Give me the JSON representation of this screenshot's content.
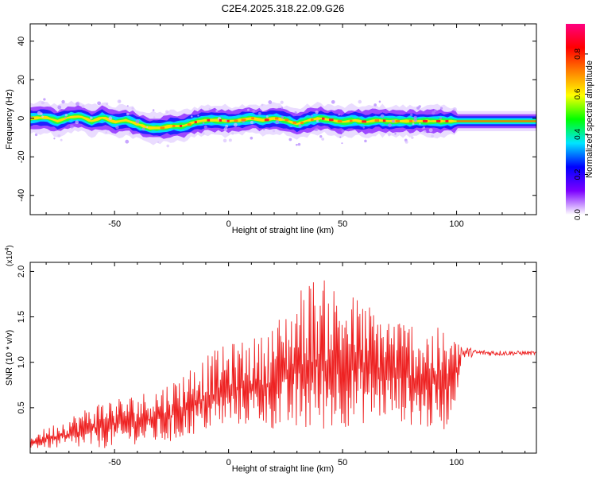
{
  "title": "C2E4.2025.318.22.09.G26",
  "chart_data": [
    {
      "type": "heatmap",
      "name": "spectrogram",
      "xlabel": "Height of straight line (km)",
      "ylabel": "Frequency (Hz)",
      "xlim": [
        -87,
        135
      ],
      "ylim": [
        -50,
        49
      ],
      "x_ticks": [
        -50,
        0,
        50,
        100
      ],
      "x_tick_labels": [
        "-50",
        "0",
        "50",
        "100"
      ],
      "y_ticks": [
        -40,
        -20,
        0,
        20,
        40
      ],
      "y_tick_labels": [
        "-40",
        "-20",
        "0",
        "20",
        "40"
      ],
      "ridge_frequency": [
        [
          -87,
          0
        ],
        [
          -80,
          0.5
        ],
        [
          -75,
          -1.5
        ],
        [
          -70,
          0.5
        ],
        [
          -65,
          1
        ],
        [
          -60,
          -1.5
        ],
        [
          -55,
          0.5
        ],
        [
          -50,
          -2
        ],
        [
          -45,
          -1
        ],
        [
          -40,
          -3
        ],
        [
          -35,
          -5
        ],
        [
          -30,
          -5
        ],
        [
          -25,
          -4
        ],
        [
          -20,
          -4
        ],
        [
          -15,
          -2
        ],
        [
          -10,
          -1
        ],
        [
          -5,
          -1
        ],
        [
          0,
          -1.5
        ],
        [
          5,
          -1
        ],
        [
          10,
          0
        ],
        [
          15,
          -1
        ],
        [
          20,
          0
        ],
        [
          25,
          -1
        ],
        [
          30,
          -3
        ],
        [
          35,
          -1
        ],
        [
          40,
          0
        ],
        [
          45,
          -1
        ],
        [
          50,
          -2
        ],
        [
          55,
          -1
        ],
        [
          60,
          -2
        ],
        [
          65,
          -1
        ],
        [
          70,
          -1.5
        ],
        [
          80,
          -1.5
        ],
        [
          90,
          -1.5
        ],
        [
          100,
          -1.5
        ],
        [
          115,
          -1.5
        ],
        [
          135,
          -1.5
        ]
      ],
      "colorbar": {
        "label": "Normalized spectral amplitude",
        "range": [
          0,
          0.95
        ],
        "ticks": [
          0.0,
          0.2,
          0.4,
          0.6,
          0.8
        ],
        "tick_labels": [
          "0.0",
          "0.2",
          "0.4",
          "0.6",
          "0.8"
        ],
        "colors": [
          "#ffffff",
          "#7c00ff",
          "#0000ff",
          "#00e5ff",
          "#00ff00",
          "#ffff00",
          "#ff8000",
          "#ff0000",
          "#ff0080"
        ]
      }
    },
    {
      "type": "line",
      "name": "snr",
      "xlabel": "Height of straight line (km)",
      "ylabel": "SNR (10 * v/v)",
      "y_multiplier": "(x10",
      "y_multiplier_exp": "4",
      "y_multiplier_close": ")",
      "xlim": [
        -87,
        135
      ],
      "ylim": [
        0,
        2.1
      ],
      "x_ticks": [
        -50,
        0,
        50,
        100
      ],
      "x_tick_labels": [
        "-50",
        "0",
        "50",
        "100"
      ],
      "y_ticks": [
        0.5,
        1.0,
        1.5,
        2.0
      ],
      "y_tick_labels": [
        "0.5",
        "1.0",
        "1.5",
        "2.0"
      ],
      "line_color": "#ee2222",
      "envelope": [
        [
          -87,
          0.05,
          0.2
        ],
        [
          -70,
          0.05,
          0.4
        ],
        [
          -55,
          0.05,
          0.6
        ],
        [
          -40,
          0.1,
          0.65
        ],
        [
          -25,
          0.1,
          0.8
        ],
        [
          -15,
          0.2,
          1.0
        ],
        [
          -5,
          0.25,
          1.15
        ],
        [
          5,
          0.3,
          1.25
        ],
        [
          15,
          0.3,
          1.3
        ],
        [
          25,
          0.2,
          1.6
        ],
        [
          35,
          0.2,
          1.95
        ],
        [
          45,
          0.25,
          1.9
        ],
        [
          55,
          0.3,
          1.75
        ],
        [
          65,
          0.35,
          1.6
        ],
        [
          75,
          0.35,
          1.5
        ],
        [
          85,
          0.25,
          1.45
        ],
        [
          95,
          0.25,
          1.35
        ],
        [
          100,
          0.6,
          1.25
        ],
        [
          102,
          1.02,
          1.2
        ],
        [
          108,
          1.07,
          1.14
        ],
        [
          135,
          1.08,
          1.12
        ]
      ]
    }
  ]
}
